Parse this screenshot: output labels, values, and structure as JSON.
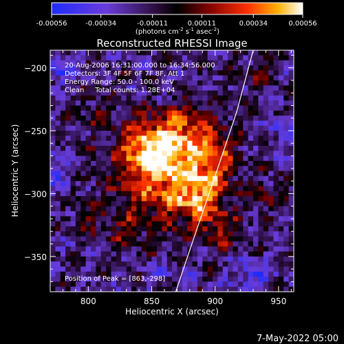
{
  "colorbar": {
    "ticks": [
      "-0.00056",
      "-0.00034",
      "-0.00011",
      "0.00011",
      "0.00034",
      "0.00056"
    ],
    "tick_values": [
      -0.00056,
      -0.00034,
      -0.00011,
      0.00011,
      0.00034,
      0.00056
    ],
    "range": [
      -0.00056,
      0.00056
    ],
    "unit_label": "(photons cm",
    "unit_exp1": "-2",
    "unit_mid": " s",
    "unit_exp2": "-1",
    "unit_mid2": " asec",
    "unit_exp3": "-2",
    "unit_end": ")"
  },
  "annotation": {
    "time_range": "20-Aug-2006 16:31:00.000 to 16:34:56.000",
    "detectors": "Detectors: 3F 4F 5F 6F 7F 8F, Att 1",
    "energy": "Energy Range: 50.0 - 100.0 keV",
    "clean": "Clean     Total counts: 1.28E+04",
    "peak": "Position of Peak = [863,-298]"
  },
  "footer": {
    "timestamp": "7-May-2022 05:00"
  },
  "chart_data": {
    "type": "heatmap",
    "title": "Reconstructed RHESSI Image",
    "xlabel": "Heliocentric X (arcsec)",
    "ylabel": "Heliocentric Y (arcsec)",
    "xlim": [
      770,
      962
    ],
    "ylim": [
      -378,
      -186
    ],
    "x_ticks": [
      800,
      850,
      900,
      950
    ],
    "y_ticks": [
      -200,
      -250,
      -300,
      -350
    ],
    "x_tick_labels": [
      "800",
      "850",
      "900",
      "950"
    ],
    "y_tick_labels": [
      "−200",
      "−250",
      "−300",
      "−350"
    ],
    "colormap": "blue-purple-black-red-yellow-white",
    "peak_position": [
      863,
      -298
    ],
    "limb_curve": [
      [
        869,
        -378
      ],
      [
        885,
        -330
      ],
      [
        902,
        -280
      ],
      [
        917,
        -235
      ],
      [
        930,
        -186
      ]
    ],
    "grid": false,
    "grid_shape": [
      48,
      48
    ],
    "blobs": [
      {
        "x": 865,
        "y": -285,
        "amp": 1.0,
        "sx": 28,
        "sy": 26
      },
      {
        "x": 848,
        "y": -262,
        "amp": 0.75,
        "sx": 16,
        "sy": 14
      },
      {
        "x": 878,
        "y": -248,
        "amp": 0.55,
        "sx": 14,
        "sy": 12
      },
      {
        "x": 888,
        "y": -305,
        "amp": 0.55,
        "sx": 12,
        "sy": 14
      },
      {
        "x": 900,
        "y": -272,
        "amp": 0.5,
        "sx": 10,
        "sy": 16
      },
      {
        "x": 830,
        "y": -330,
        "amp": 0.35,
        "sx": 10,
        "sy": 8
      },
      {
        "x": 905,
        "y": -330,
        "amp": 0.4,
        "sx": 10,
        "sy": 10
      },
      {
        "x": 800,
        "y": -320,
        "amp": 0.3,
        "sx": 8,
        "sy": 8
      },
      {
        "x": 805,
        "y": -235,
        "amp": 0.3,
        "sx": 8,
        "sy": 10
      },
      {
        "x": 935,
        "y": -205,
        "amp": 0.35,
        "sx": 8,
        "sy": 8
      },
      {
        "x": 940,
        "y": -300,
        "amp": 0.35,
        "sx": 7,
        "sy": 9
      },
      {
        "x": 780,
        "y": -200,
        "amp": -0.45,
        "sx": 10,
        "sy": 10
      },
      {
        "x": 775,
        "y": -280,
        "amp": -0.35,
        "sx": 8,
        "sy": 12
      },
      {
        "x": 930,
        "y": -365,
        "amp": -0.45,
        "sx": 12,
        "sy": 10
      },
      {
        "x": 950,
        "y": -250,
        "amp": -0.3,
        "sx": 8,
        "sy": 10
      },
      {
        "x": 860,
        "y": -365,
        "amp": -0.25,
        "sx": 14,
        "sy": 6
      }
    ]
  }
}
